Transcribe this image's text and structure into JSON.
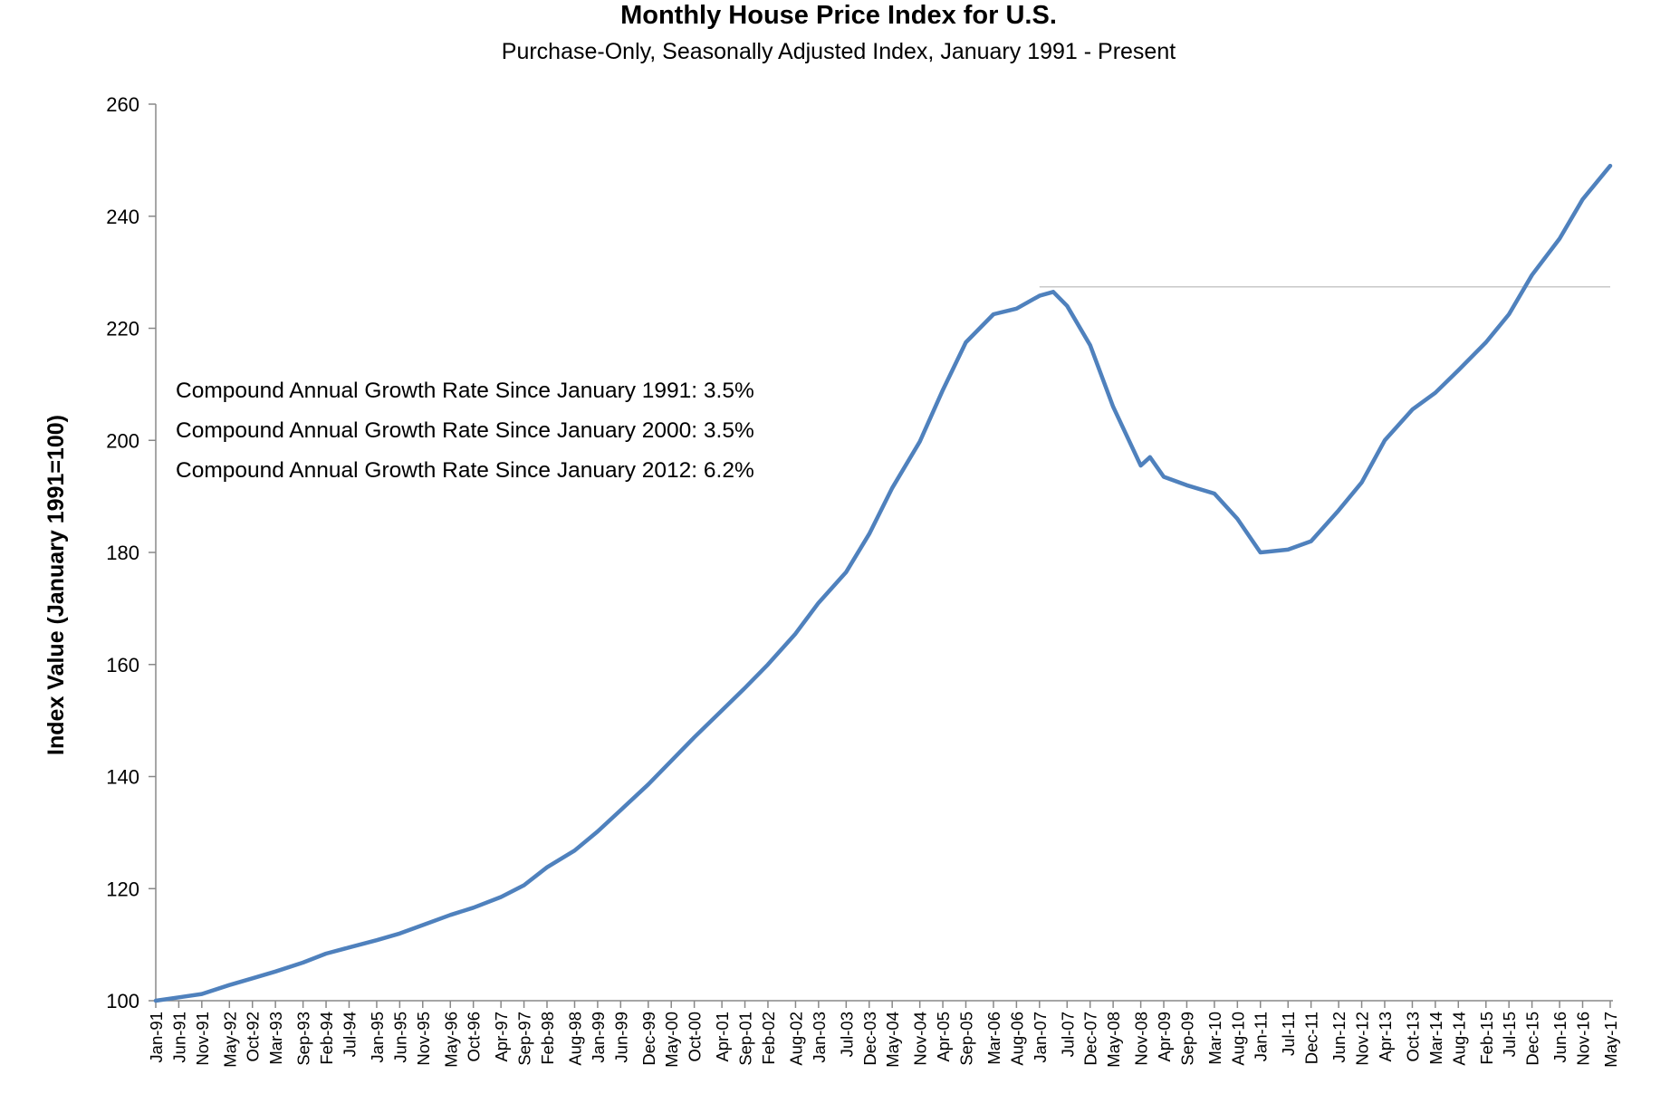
{
  "chart_data": {
    "type": "line",
    "title": "Monthly House Price Index for U.S.",
    "subtitle": "Purchase-Only, Seasonally Adjusted Index, January 1991 - Present",
    "xlabel": "",
    "ylabel": "Index Value (January 1991=100)",
    "ylim": [
      100,
      260
    ],
    "yticks": [
      "100",
      "120",
      "140",
      "160",
      "180",
      "200",
      "220",
      "240",
      "260"
    ],
    "x_tick_labels": [
      "Jan-91",
      "Jun-91",
      "Nov-91",
      "May-92",
      "Oct-92",
      "Mar-93",
      "Sep-93",
      "Feb-94",
      "Jul-94",
      "Jan-95",
      "Jun-95",
      "Nov-95",
      "May-96",
      "Oct-96",
      "Apr-97",
      "Sep-97",
      "Feb-98",
      "Aug-98",
      "Jan-99",
      "Jun-99",
      "Dec-99",
      "May-00",
      "Oct-00",
      "Apr-01",
      "Sep-01",
      "Feb-02",
      "Aug-02",
      "Jan-03",
      "Jul-03",
      "Dec-03",
      "May-04",
      "Nov-04",
      "Apr-05",
      "Sep-05",
      "Mar-06",
      "Aug-06",
      "Jan-07",
      "Jul-07",
      "Dec-07",
      "May-08",
      "Nov-08",
      "Apr-09",
      "Sep-09",
      "Mar-10",
      "Aug-10",
      "Jan-11",
      "Jul-11",
      "Dec-11",
      "Jun-12",
      "Nov-12",
      "Apr-13",
      "Oct-13",
      "Mar-14",
      "Aug-14",
      "Feb-15",
      "Jul-15",
      "Dec-15",
      "Jun-16",
      "Nov-16",
      "May-17"
    ],
    "grid": false,
    "legend": "none",
    "line_color": "#4F81BD",
    "reference_line": {
      "value": 227.4,
      "from": "Jan-07",
      "to": "May-17",
      "color": "#C8C8C8"
    },
    "series": [
      {
        "x": [
          "Jan-91",
          "Jun-91",
          "Nov-91",
          "May-92",
          "Oct-92",
          "Mar-93",
          "Sep-93",
          "Feb-94",
          "Jul-94",
          "Jan-95",
          "Jun-95",
          "Nov-95",
          "May-96",
          "Oct-96",
          "Apr-97",
          "Sep-97",
          "Feb-98",
          "Aug-98",
          "Jan-99",
          "Jun-99",
          "Dec-99",
          "May-00",
          "Oct-00",
          "Apr-01",
          "Sep-01",
          "Feb-02",
          "Aug-02",
          "Jan-03",
          "Jul-03",
          "Dec-03",
          "May-04",
          "Nov-04",
          "Apr-05",
          "Sep-05",
          "Mar-06",
          "Aug-06",
          "Jan-07",
          "Apr-07",
          "Jul-07",
          "Dec-07",
          "May-08",
          "Nov-08",
          "Jan-09",
          "Apr-09",
          "Sep-09",
          "Mar-10",
          "Aug-10",
          "Jan-11",
          "Jul-11",
          "Dec-11",
          "Jun-12",
          "Nov-12",
          "Apr-13",
          "Oct-13",
          "Mar-14",
          "Aug-14",
          "Feb-15",
          "Jul-15",
          "Dec-15",
          "Jun-16",
          "Nov-16",
          "May-17"
        ],
        "values": [
          100.0,
          100.6,
          101.2,
          102.8,
          104.0,
          105.2,
          106.8,
          108.4,
          109.5,
          110.8,
          112.0,
          113.5,
          115.3,
          116.6,
          118.5,
          120.6,
          123.8,
          126.8,
          130.2,
          134.0,
          138.6,
          142.8,
          147.0,
          151.8,
          155.8,
          160.0,
          165.5,
          171.0,
          176.5,
          183.3,
          191.5,
          199.8,
          209.0,
          217.5,
          222.5,
          223.5,
          225.8,
          226.5,
          224.0,
          217.0,
          206.0,
          195.5,
          197.0,
          193.5,
          192.0,
          190.5,
          186.0,
          180.0,
          180.5,
          182.0,
          187.5,
          192.5,
          200.0,
          205.5,
          208.5,
          212.5,
          217.5,
          222.5,
          229.5,
          236.0,
          243.0,
          249.0
        ]
      }
    ],
    "annotations": [
      "Compound Annual Growth Rate Since January 1991:  3.5%",
      "Compound Annual Growth Rate Since January 2000:  3.5%",
      "Compound Annual Growth Rate Since January 2012:  6.2%"
    ]
  }
}
